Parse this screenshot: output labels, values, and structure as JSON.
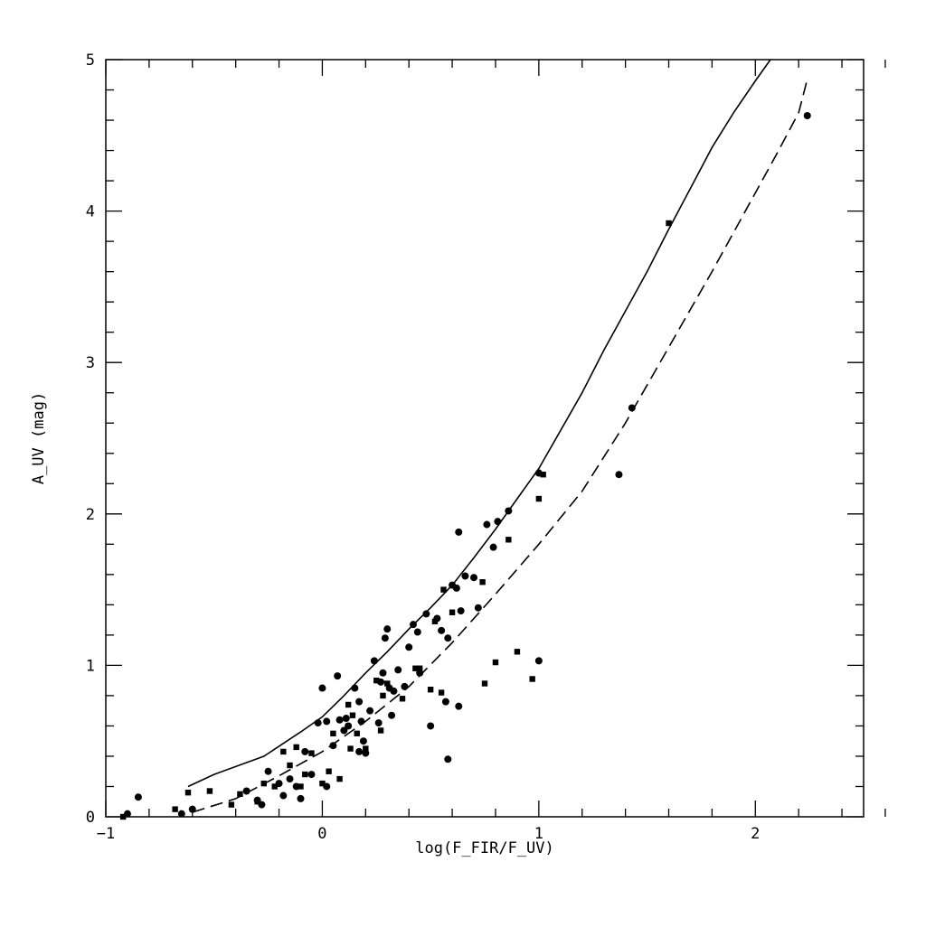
{
  "chart_data": {
    "type": "scatter",
    "title": "",
    "xlabel": "log(F_FIR/F_UV)",
    "ylabel": "A_UV (mag)",
    "xlim": [
      -1,
      2.5
    ],
    "ylim": [
      0,
      5
    ],
    "x_major_ticks": [
      -1,
      0,
      1,
      2
    ],
    "y_major_ticks": [
      0,
      1,
      2,
      3,
      4,
      5
    ],
    "x_minor_step": 0.2,
    "y_minor_step": 0.2,
    "grid": false,
    "legend": "none",
    "curves": [
      {
        "style": "solid",
        "points": [
          [
            -0.62,
            0.2
          ],
          [
            -0.5,
            0.28
          ],
          [
            -0.27,
            0.4
          ],
          [
            -0.1,
            0.56
          ],
          [
            0.0,
            0.66
          ],
          [
            0.1,
            0.8
          ],
          [
            0.2,
            0.95
          ],
          [
            0.3,
            1.09
          ],
          [
            0.4,
            1.24
          ],
          [
            0.5,
            1.38
          ],
          [
            0.6,
            1.53
          ],
          [
            0.7,
            1.71
          ],
          [
            0.8,
            1.9
          ],
          [
            0.9,
            2.1
          ],
          [
            1.0,
            2.3
          ],
          [
            1.1,
            2.55
          ],
          [
            1.2,
            2.8
          ],
          [
            1.3,
            3.08
          ],
          [
            1.4,
            3.34
          ],
          [
            1.5,
            3.6
          ],
          [
            1.6,
            3.88
          ],
          [
            1.7,
            4.15
          ],
          [
            1.8,
            4.42
          ],
          [
            1.9,
            4.65
          ],
          [
            2.0,
            4.86
          ],
          [
            2.07,
            5.0
          ]
        ]
      },
      {
        "style": "dashed",
        "points": [
          [
            -0.6,
            0.03
          ],
          [
            -0.4,
            0.12
          ],
          [
            -0.2,
            0.27
          ],
          [
            0.0,
            0.43
          ],
          [
            0.2,
            0.63
          ],
          [
            0.4,
            0.86
          ],
          [
            0.6,
            1.15
          ],
          [
            0.8,
            1.47
          ],
          [
            1.0,
            1.8
          ],
          [
            1.2,
            2.15
          ],
          [
            1.4,
            2.6
          ],
          [
            1.6,
            3.1
          ],
          [
            1.8,
            3.6
          ],
          [
            2.0,
            4.12
          ],
          [
            2.1,
            4.38
          ],
          [
            2.2,
            4.65
          ],
          [
            2.24,
            4.87
          ]
        ]
      }
    ],
    "series": [
      {
        "marker": "circle",
        "points": [
          [
            -0.9,
            0.02
          ],
          [
            -0.85,
            0.13
          ],
          [
            -0.65,
            0.02
          ],
          [
            -0.6,
            0.05
          ],
          [
            -0.35,
            0.17
          ],
          [
            -0.28,
            0.08
          ],
          [
            -0.25,
            0.3
          ],
          [
            -0.2,
            0.22
          ],
          [
            -0.18,
            0.14
          ],
          [
            -0.15,
            0.25
          ],
          [
            -0.12,
            0.2
          ],
          [
            -0.1,
            0.12
          ],
          [
            -0.08,
            0.43
          ],
          [
            -0.05,
            0.28
          ],
          [
            -0.02,
            0.62
          ],
          [
            0.0,
            0.85
          ],
          [
            0.02,
            0.63
          ],
          [
            0.05,
            0.47
          ],
          [
            0.07,
            0.93
          ],
          [
            0.08,
            0.64
          ],
          [
            0.1,
            0.57
          ],
          [
            0.11,
            0.65
          ],
          [
            0.12,
            0.6
          ],
          [
            0.15,
            0.85
          ],
          [
            0.17,
            0.76
          ],
          [
            0.18,
            0.63
          ],
          [
            0.19,
            0.5
          ],
          [
            0.2,
            0.42
          ],
          [
            0.22,
            0.7
          ],
          [
            0.24,
            1.03
          ],
          [
            0.26,
            0.62
          ],
          [
            0.27,
            0.89
          ],
          [
            0.28,
            0.95
          ],
          [
            0.29,
            1.18
          ],
          [
            0.3,
            1.24
          ],
          [
            0.31,
            0.85
          ],
          [
            0.32,
            0.67
          ],
          [
            0.33,
            0.83
          ],
          [
            0.35,
            0.97
          ],
          [
            0.38,
            0.86
          ],
          [
            0.4,
            1.12
          ],
          [
            0.42,
            1.27
          ],
          [
            0.44,
            1.22
          ],
          [
            0.45,
            0.95
          ],
          [
            0.48,
            1.34
          ],
          [
            0.5,
            0.6
          ],
          [
            0.53,
            1.31
          ],
          [
            0.55,
            1.23
          ],
          [
            0.57,
            0.76
          ],
          [
            0.58,
            1.18
          ],
          [
            0.6,
            1.53
          ],
          [
            0.62,
            1.51
          ],
          [
            0.63,
            1.88
          ],
          [
            0.64,
            1.36
          ],
          [
            0.66,
            1.59
          ],
          [
            0.7,
            1.58
          ],
          [
            0.72,
            1.38
          ],
          [
            0.76,
            1.93
          ],
          [
            0.79,
            1.78
          ],
          [
            0.81,
            1.95
          ],
          [
            0.86,
            2.02
          ],
          [
            1.0,
            1.03
          ],
          [
            1.0,
            2.27
          ],
          [
            1.37,
            2.26
          ],
          [
            1.43,
            2.7
          ],
          [
            2.24,
            4.63
          ],
          [
            0.58,
            0.38
          ],
          [
            0.63,
            0.73
          ],
          [
            0.17,
            0.43
          ],
          [
            -0.3,
            0.11
          ],
          [
            0.02,
            0.2
          ]
        ]
      },
      {
        "marker": "square",
        "points": [
          [
            -0.92,
            0.0
          ],
          [
            -0.68,
            0.05
          ],
          [
            -0.62,
            0.16
          ],
          [
            -0.52,
            0.17
          ],
          [
            -0.42,
            0.08
          ],
          [
            -0.38,
            0.15
          ],
          [
            -0.3,
            0.1
          ],
          [
            -0.27,
            0.22
          ],
          [
            -0.22,
            0.2
          ],
          [
            -0.18,
            0.43
          ],
          [
            -0.15,
            0.34
          ],
          [
            -0.12,
            0.46
          ],
          [
            -0.1,
            0.2
          ],
          [
            -0.05,
            0.42
          ],
          [
            0.0,
            0.22
          ],
          [
            0.03,
            0.3
          ],
          [
            0.05,
            0.55
          ],
          [
            0.08,
            0.25
          ],
          [
            0.12,
            0.74
          ],
          [
            0.14,
            0.67
          ],
          [
            0.16,
            0.55
          ],
          [
            0.2,
            0.45
          ],
          [
            0.25,
            0.9
          ],
          [
            0.28,
            0.8
          ],
          [
            0.3,
            0.88
          ],
          [
            0.37,
            0.78
          ],
          [
            0.43,
            0.98
          ],
          [
            0.45,
            0.98
          ],
          [
            0.5,
            0.84
          ],
          [
            0.52,
            1.29
          ],
          [
            0.55,
            0.82
          ],
          [
            0.56,
            1.5
          ],
          [
            0.6,
            1.35
          ],
          [
            0.74,
            1.55
          ],
          [
            0.75,
            0.88
          ],
          [
            0.8,
            1.02
          ],
          [
            0.86,
            1.83
          ],
          [
            0.9,
            1.09
          ],
          [
            0.97,
            0.91
          ],
          [
            1.0,
            2.1
          ],
          [
            1.02,
            2.26
          ],
          [
            1.6,
            3.92
          ],
          [
            0.27,
            0.57
          ],
          [
            -0.08,
            0.28
          ],
          [
            0.13,
            0.45
          ]
        ]
      }
    ]
  }
}
